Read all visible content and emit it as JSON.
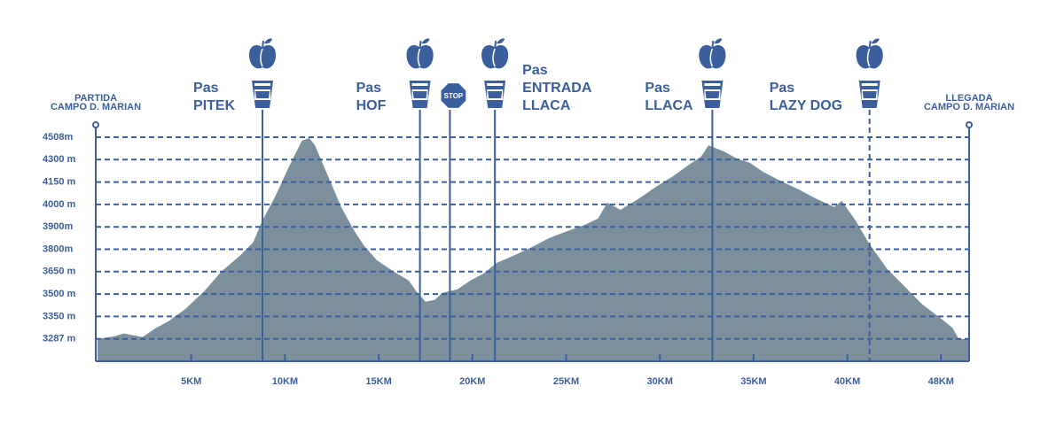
{
  "chart_data": {
    "type": "elevation-profile",
    "start": [
      "PARTIDA",
      "CAMPO D. MARIAN"
    ],
    "finish": [
      "LLEGADA",
      "CAMPO D. MARIAN"
    ],
    "x": [
      0,
      0.9,
      1.4,
      1.9,
      2.4,
      3.1,
      3.8,
      4.7,
      5.7,
      6.6,
      7.6,
      8.3,
      8.8,
      9.5,
      10.2,
      10.9,
      11.3,
      11.6,
      12.3,
      13.0,
      13.7,
      14.2,
      14.9,
      15.8,
      16.6,
      17.0,
      17.5,
      18.0,
      18.4,
      19.2,
      19.9,
      20.6,
      21.3,
      22.2,
      23.2,
      24.1,
      25.1,
      26.0,
      26.7,
      27.2,
      27.9,
      28.9,
      29.8,
      30.7,
      31.5,
      32.2,
      32.6,
      33.4,
      34.1,
      34.8,
      35.5,
      36.4,
      37.4,
      38.3,
      39.3,
      39.7,
      40.7,
      41.8,
      43.4,
      44.9,
      46.4,
      47.9,
      49.0,
      49.5,
      50.4
    ],
    "values": [
      3287,
      3294,
      3302,
      3297,
      3292,
      3317,
      3337,
      3402,
      3520,
      3650,
      3757,
      3830,
      3929,
      4059,
      4249,
      4475,
      4500,
      4433,
      4189,
      3988,
      3882,
      3818,
      3727,
      3650,
      3591,
      3520,
      3449,
      3461,
      3508,
      3532,
      3591,
      3638,
      3709,
      3757,
      3811,
      3850,
      3882,
      3909,
      3937,
      4012,
      3976,
      4041,
      4119,
      4189,
      4261,
      4328,
      4433,
      4377,
      4311,
      4279,
      4219,
      4160,
      4101,
      4041,
      3988,
      4024,
      3929,
      3830,
      3668,
      3550,
      3431,
      3347,
      3317,
      3287,
      3287
    ],
    "xlim": [
      0,
      50.4
    ],
    "ylim": [
      3224,
      4508
    ],
    "xticks": [
      {
        "value": 5,
        "label": "5KM"
      },
      {
        "value": 10,
        "label": "10KM"
      },
      {
        "value": 15,
        "label": "15KM"
      },
      {
        "value": 20,
        "label": "20KM"
      },
      {
        "value": 25,
        "label": "25KM"
      },
      {
        "value": 30,
        "label": "30KM"
      },
      {
        "value": 35,
        "label": "35KM"
      },
      {
        "value": 40,
        "label": "40KM"
      },
      {
        "value": 48,
        "label": "48KM"
      }
    ],
    "yticks": [
      {
        "value": 3287,
        "label": "3287 m"
      },
      {
        "value": 3350,
        "label": "3350 m"
      },
      {
        "value": 3500,
        "label": "3500 m"
      },
      {
        "value": 3650,
        "label": "3650 m"
      },
      {
        "value": 3800,
        "label": "3800m"
      },
      {
        "value": 3900,
        "label": "3900m"
      },
      {
        "value": 4000,
        "label": "4000 m"
      },
      {
        "value": 4150,
        "label": "4150 m"
      },
      {
        "value": 4300,
        "label": "4300 m"
      },
      {
        "value": 4508,
        "label": "4508m"
      }
    ],
    "tick_spacing": "even",
    "grid": true,
    "color": "#7b8f9c",
    "axis_color": "#3b5f9c",
    "waypoints": [
      {
        "label": [
          "Pas",
          "PITEK"
        ],
        "km": 8.8,
        "icons": [
          "apple",
          "cup"
        ]
      },
      {
        "label": [
          "Pas",
          "HOF"
        ],
        "km": 17.2,
        "icons": [
          "apple",
          "cup"
        ]
      },
      {
        "km": 18.8,
        "sign": "STOP"
      },
      {
        "label": [
          "Pas",
          "ENTRADA",
          "LLACA"
        ],
        "km": 21.2,
        "icons": [
          "apple",
          "cup"
        ]
      },
      {
        "label": [
          "Pas",
          "LLACA"
        ],
        "km": 32.8,
        "icons": [
          "apple",
          "cup"
        ]
      },
      {
        "label": [
          "Pas",
          "LAZY DOG"
        ],
        "km": 41.9,
        "icons": [
          "apple",
          "cup"
        ],
        "line_style": "dashed"
      }
    ]
  }
}
